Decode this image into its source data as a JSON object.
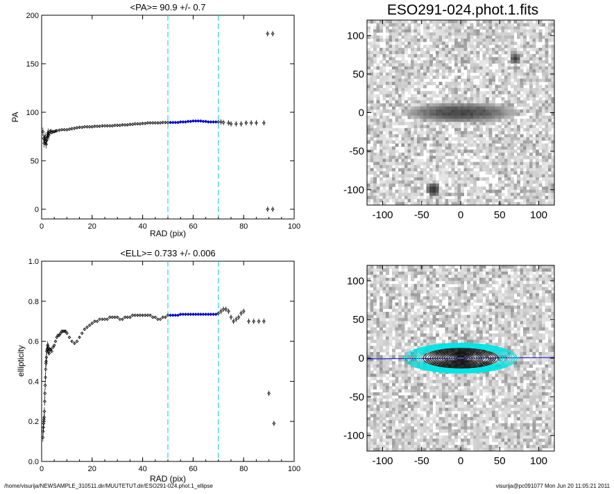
{
  "footer": {
    "left": "/home/visurija/NEWSAMPLE_310511.dir/MUUTETUT.dir/ESO291-024.phot.1_ellipse",
    "right": "visurija@pc091077  Mon Jun 20 11:05:21 2011"
  },
  "chart_data": [
    {
      "type": "scatter",
      "title": "<PA>=  90.9 +/-   0.7",
      "xlabel": "RAD (pix)",
      "ylabel": "PA",
      "xlim": [
        0,
        100
      ],
      "ylim": [
        -10,
        200
      ],
      "xticks": [
        0,
        20,
        40,
        60,
        80,
        100
      ],
      "yticks": [
        0,
        50,
        100,
        150,
        200
      ],
      "vlines": [
        50,
        70
      ],
      "fit_range": [
        50,
        70
      ],
      "series": [
        {
          "points": [
            [
              0.5,
              80
            ],
            [
              0.8,
              73
            ],
            [
              1.0,
              68
            ],
            [
              1.2,
              72
            ],
            [
              1.4,
              75
            ],
            [
              1.6,
              70
            ],
            [
              1.8,
              67
            ],
            [
              2.0,
              71
            ],
            [
              2.2,
              74
            ],
            [
              2.4,
              77
            ],
            [
              2.6,
              79
            ],
            [
              2.8,
              76
            ],
            [
              3.0,
              78
            ],
            [
              3.3,
              80
            ],
            [
              3.6,
              81
            ],
            [
              4.0,
              79
            ],
            [
              4.5,
              80
            ],
            [
              5,
              80
            ],
            [
              5.5,
              80.5
            ],
            [
              6,
              81
            ],
            [
              7,
              81.5
            ],
            [
              8,
              82
            ],
            [
              9,
              82
            ],
            [
              10,
              82
            ],
            [
              11,
              82.5
            ],
            [
              12,
              83
            ],
            [
              13,
              83.5
            ],
            [
              14,
              84
            ],
            [
              15,
              84.5
            ],
            [
              16,
              84.5
            ],
            [
              17,
              85
            ],
            [
              18,
              85
            ],
            [
              19,
              85
            ],
            [
              20,
              85
            ],
            [
              21,
              85.5
            ],
            [
              22,
              85.5
            ],
            [
              23,
              85.5
            ],
            [
              24,
              86
            ],
            [
              25,
              86
            ],
            [
              26,
              86
            ],
            [
              27,
              86
            ],
            [
              28,
              86
            ],
            [
              29,
              86.5
            ],
            [
              30,
              86.5
            ],
            [
              31,
              86.5
            ],
            [
              32,
              87
            ],
            [
              33,
              87
            ],
            [
              34,
              87
            ],
            [
              35,
              87.5
            ],
            [
              36,
              87.5
            ],
            [
              37,
              88
            ],
            [
              38,
              88
            ],
            [
              39,
              88
            ],
            [
              40,
              88.5
            ],
            [
              41,
              88.5
            ],
            [
              42,
              89
            ],
            [
              43,
              89
            ],
            [
              44,
              89
            ],
            [
              45,
              89
            ],
            [
              46,
              89
            ],
            [
              47,
              89
            ],
            [
              48,
              89.5
            ],
            [
              49,
              89.5
            ],
            [
              50,
              89.5
            ],
            [
              51,
              89.5
            ],
            [
              52,
              89.5
            ],
            [
              53,
              89.5
            ],
            [
              54,
              89.5
            ],
            [
              55,
              90
            ],
            [
              56,
              90
            ],
            [
              57,
              90
            ],
            [
              58,
              90.5
            ],
            [
              59,
              90.5
            ],
            [
              60,
              91
            ],
            [
              61,
              91
            ],
            [
              62,
              91
            ],
            [
              63,
              91
            ],
            [
              64,
              90.5
            ],
            [
              65,
              90.5
            ],
            [
              66,
              90
            ],
            [
              67,
              90
            ],
            [
              68,
              90
            ],
            [
              69,
              90
            ],
            [
              70,
              90
            ],
            [
              71,
              90
            ],
            [
              72,
              89.5
            ],
            [
              74,
              89
            ],
            [
              75,
              88
            ],
            [
              77,
              88
            ],
            [
              79,
              88
            ],
            [
              81,
              89
            ],
            [
              83,
              89
            ],
            [
              85,
              89
            ],
            [
              88,
              89
            ],
            [
              89.5,
              0
            ],
            [
              91.5,
              0
            ],
            [
              89.5,
              181
            ],
            [
              91.5,
              181
            ]
          ]
        }
      ]
    },
    {
      "type": "scatter",
      "title": "<ELL>= 0.733 +/-  0.006",
      "xlabel": "RAD (pix)",
      "ylabel": "ellipticity",
      "xlim": [
        0,
        100
      ],
      "ylim": [
        0,
        1
      ],
      "xticks": [
        0,
        20,
        40,
        60,
        80,
        100
      ],
      "yticks": [
        0.0,
        0.2,
        0.4,
        0.6,
        0.8,
        1.0
      ],
      "vlines": [
        50,
        70
      ],
      "fit_range": [
        50,
        70
      ],
      "series": [
        {
          "points": [
            [
              0.5,
              0.12
            ],
            [
              0.6,
              0.15
            ],
            [
              0.7,
              0.17
            ],
            [
              0.8,
              0.19
            ],
            [
              0.9,
              0.21
            ],
            [
              1.0,
              0.22
            ],
            [
              1.1,
              0.25
            ],
            [
              1.2,
              0.3
            ],
            [
              1.3,
              0.34
            ],
            [
              1.4,
              0.38
            ],
            [
              1.5,
              0.42
            ],
            [
              1.6,
              0.46
            ],
            [
              1.7,
              0.49
            ],
            [
              1.8,
              0.5
            ],
            [
              1.9,
              0.52
            ],
            [
              2.0,
              0.55
            ],
            [
              2.2,
              0.56
            ],
            [
              2.4,
              0.58
            ],
            [
              2.6,
              0.57
            ],
            [
              2.8,
              0.55
            ],
            [
              3.0,
              0.54
            ],
            [
              3.3,
              0.56
            ],
            [
              3.6,
              0.56
            ],
            [
              4,
              0.55
            ],
            [
              4.5,
              0.57
            ],
            [
              5,
              0.58
            ],
            [
              5.5,
              0.6
            ],
            [
              6,
              0.62
            ],
            [
              6.5,
              0.63
            ],
            [
              7,
              0.63
            ],
            [
              7.5,
              0.64
            ],
            [
              8,
              0.65
            ],
            [
              8.5,
              0.65
            ],
            [
              9,
              0.65
            ],
            [
              9.5,
              0.65
            ],
            [
              10,
              0.64
            ],
            [
              11,
              0.62
            ],
            [
              12,
              0.6
            ],
            [
              13,
              0.59
            ],
            [
              14,
              0.6
            ],
            [
              15,
              0.62
            ],
            [
              16,
              0.64
            ],
            [
              17,
              0.66
            ],
            [
              18,
              0.67
            ],
            [
              19,
              0.68
            ],
            [
              20,
              0.69
            ],
            [
              21,
              0.7
            ],
            [
              22,
              0.7
            ],
            [
              23,
              0.71
            ],
            [
              24,
              0.71
            ],
            [
              25,
              0.71
            ],
            [
              26,
              0.71
            ],
            [
              27,
              0.72
            ],
            [
              28,
              0.72
            ],
            [
              29,
              0.72
            ],
            [
              30,
              0.72
            ],
            [
              31,
              0.71
            ],
            [
              32,
              0.71
            ],
            [
              33,
              0.72
            ],
            [
              34,
              0.72
            ],
            [
              35,
              0.72
            ],
            [
              36,
              0.73
            ],
            [
              37,
              0.73
            ],
            [
              38,
              0.73
            ],
            [
              39,
              0.73
            ],
            [
              40,
              0.73
            ],
            [
              41,
              0.73
            ],
            [
              42,
              0.73
            ],
            [
              43,
              0.73
            ],
            [
              44,
              0.72
            ],
            [
              45,
              0.72
            ],
            [
              46,
              0.71
            ],
            [
              47,
              0.71
            ],
            [
              48,
              0.72
            ],
            [
              49,
              0.72
            ],
            [
              50,
              0.73
            ],
            [
              51,
              0.73
            ],
            [
              52,
              0.73
            ],
            [
              53,
              0.73
            ],
            [
              54,
              0.73
            ],
            [
              55,
              0.735
            ],
            [
              56,
              0.735
            ],
            [
              57,
              0.735
            ],
            [
              58,
              0.735
            ],
            [
              59,
              0.735
            ],
            [
              60,
              0.735
            ],
            [
              61,
              0.735
            ],
            [
              62,
              0.735
            ],
            [
              63,
              0.735
            ],
            [
              64,
              0.735
            ],
            [
              65,
              0.735
            ],
            [
              66,
              0.735
            ],
            [
              67,
              0.735
            ],
            [
              68,
              0.735
            ],
            [
              69,
              0.735
            ],
            [
              70,
              0.74
            ],
            [
              71,
              0.75
            ],
            [
              72,
              0.76
            ],
            [
              73,
              0.76
            ],
            [
              74,
              0.75
            ],
            [
              75,
              0.72
            ],
            [
              76,
              0.7
            ],
            [
              77,
              0.71
            ],
            [
              78,
              0.72
            ],
            [
              79,
              0.74
            ],
            [
              80,
              0.75
            ],
            [
              82,
              0.7
            ],
            [
              84,
              0.7
            ],
            [
              86,
              0.7
            ],
            [
              88,
              0.7
            ],
            [
              90,
              0.34
            ],
            [
              92,
              0.19
            ]
          ]
        }
      ]
    },
    {
      "type": "heatmap",
      "title": "ESO291-024.phot.1.fits",
      "xlim": [
        -120,
        120
      ],
      "ylim": [
        -120,
        120
      ],
      "xticks": [
        -100,
        -50,
        0,
        50,
        100
      ],
      "yticks": [
        -100,
        -50,
        0,
        50,
        100
      ],
      "grayscale": true
    },
    {
      "type": "heatmap",
      "title": "",
      "xlim": [
        -120,
        120
      ],
      "ylim": [
        -120,
        120
      ],
      "xticks": [
        -100,
        -50,
        0,
        50,
        100
      ],
      "yticks": [
        -100,
        -50,
        0,
        50,
        100
      ],
      "grayscale": true,
      "overlay": "ellipse fits",
      "colors": {
        "ellipse_fit": "#00e5e5",
        "ellipse": "#000000",
        "major_axis": "#0000cc"
      }
    }
  ],
  "colors": {
    "axes": "#000000",
    "points": "#000000",
    "fit_points": "#0000cc",
    "vline": "#00cccc"
  }
}
